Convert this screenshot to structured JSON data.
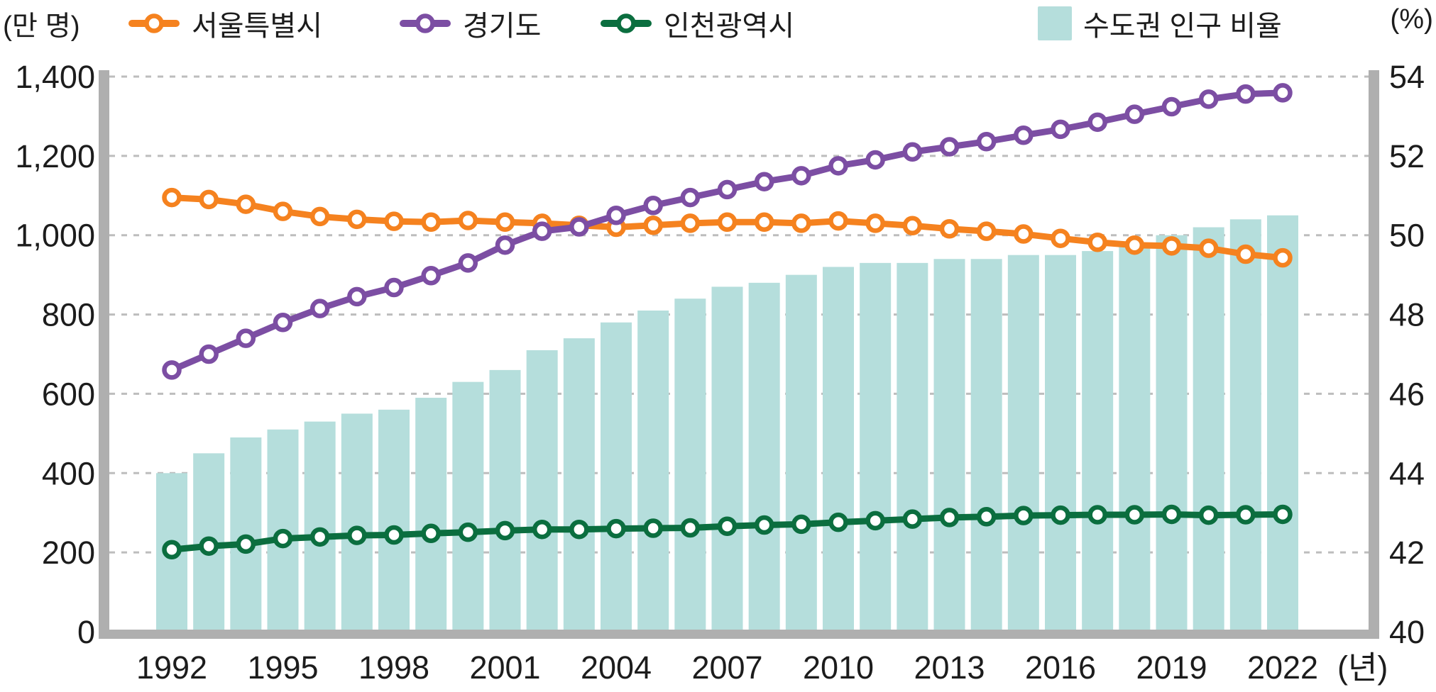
{
  "legend": {
    "left_unit": "(만 명)",
    "right_unit": "(%)",
    "x_unit": "(년)"
  },
  "chart_data": {
    "type": "combo-bar-line",
    "title": "",
    "x_label": "(년)",
    "x": [
      1992,
      1993,
      1994,
      1995,
      1996,
      1997,
      1998,
      1999,
      2000,
      2001,
      2002,
      2003,
      2004,
      2005,
      2006,
      2007,
      2008,
      2009,
      2010,
      2011,
      2012,
      2013,
      2014,
      2015,
      2016,
      2017,
      2018,
      2019,
      2020,
      2021,
      2022
    ],
    "x_tick_labels": [
      "1992",
      "1995",
      "1998",
      "2001",
      "2004",
      "2007",
      "2010",
      "2013",
      "2016",
      "2019",
      "2022"
    ],
    "y_left": {
      "unit": "(만 명)",
      "min": 0,
      "max": 1400,
      "step": 200,
      "ticks": [
        "0",
        "200",
        "400",
        "600",
        "800",
        "1,000",
        "1,200",
        "1,400"
      ]
    },
    "y_right": {
      "unit": "(%)",
      "min": 40,
      "max": 54,
      "step": 2,
      "ticks": [
        "40",
        "42",
        "44",
        "46",
        "48",
        "50",
        "52",
        "54"
      ]
    },
    "grid": "dashed-horizontal",
    "legend_position": "top",
    "series": [
      {
        "name": "서울특별시",
        "type": "line",
        "axis": "left",
        "color": "#F5821F",
        "values": [
          1095,
          1090,
          1078,
          1060,
          1047,
          1040,
          1035,
          1033,
          1037,
          1033,
          1030,
          1025,
          1020,
          1025,
          1030,
          1033,
          1033,
          1030,
          1036,
          1030,
          1024,
          1016,
          1010,
          1003,
          992,
          982,
          975,
          973,
          967,
          952,
          943
        ]
      },
      {
        "name": "경기도",
        "type": "line",
        "axis": "left",
        "color": "#7C4EA3",
        "values": [
          660,
          700,
          740,
          780,
          815,
          845,
          868,
          898,
          930,
          975,
          1010,
          1021,
          1050,
          1075,
          1095,
          1115,
          1135,
          1150,
          1175,
          1190,
          1210,
          1223,
          1236,
          1252,
          1267,
          1285,
          1305,
          1324,
          1343,
          1356,
          1359
        ]
      },
      {
        "name": "인천광역시",
        "type": "line",
        "axis": "left",
        "color": "#0B6E3F",
        "values": [
          207,
          216,
          221,
          235,
          239,
          243,
          244,
          248,
          251,
          255,
          258,
          258,
          260,
          261,
          262,
          266,
          269,
          271,
          276,
          280,
          284,
          288,
          290,
          293,
          294,
          295,
          295,
          296,
          294,
          295,
          296
        ]
      },
      {
        "name": "수도권 인구 비율",
        "type": "bar",
        "axis": "right",
        "color": "#B5DEDC",
        "values": [
          44.0,
          44.5,
          44.9,
          45.1,
          45.3,
          45.5,
          45.6,
          45.9,
          46.3,
          46.6,
          47.1,
          47.4,
          47.8,
          48.1,
          48.4,
          48.7,
          48.8,
          49.0,
          49.2,
          49.3,
          49.3,
          49.4,
          49.4,
          49.5,
          49.5,
          49.6,
          49.7,
          50.0,
          50.2,
          50.4,
          50.5
        ]
      }
    ]
  }
}
